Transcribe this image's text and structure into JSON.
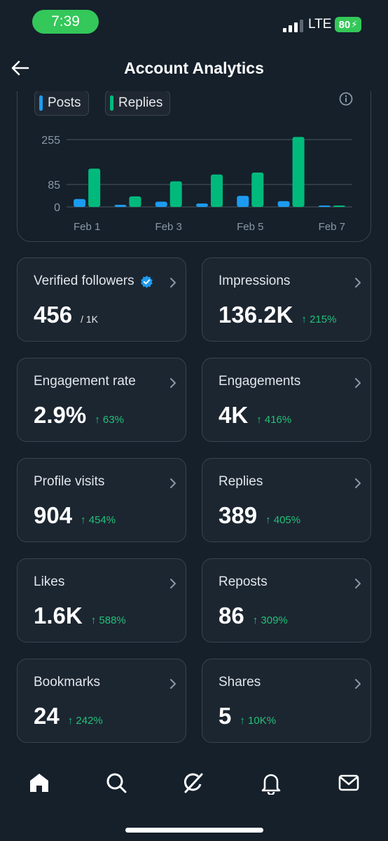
{
  "status_bar": {
    "time": "7:39",
    "network": "LTE",
    "battery": "80"
  },
  "header": {
    "title": "Account Analytics"
  },
  "legend": {
    "posts": "Posts",
    "replies": "Replies"
  },
  "colors": {
    "posts": "#1d9bf0",
    "replies": "#00ba7c",
    "positive": "#23c078"
  },
  "chart_data": {
    "type": "bar",
    "categories": [
      "Feb 1",
      "Feb 2",
      "Feb 3",
      "Feb 4",
      "Feb 5",
      "Feb 6",
      "Feb 7"
    ],
    "x_tick_labels": [
      "Feb 1",
      "Feb 3",
      "Feb 5",
      "Feb 7"
    ],
    "series": [
      {
        "name": "Posts",
        "values": [
          30,
          8,
          20,
          13,
          42,
          22,
          3
        ]
      },
      {
        "name": "Replies",
        "values": [
          145,
          40,
          97,
          123,
          130,
          265,
          4
        ]
      }
    ],
    "y_ticks": [
      0,
      85,
      255
    ],
    "ylim": [
      0,
      270
    ],
    "grid": true
  },
  "stats": [
    {
      "label": "Verified followers",
      "value": "456",
      "sub": "/ 1K",
      "change": "",
      "verified": true
    },
    {
      "label": "Impressions",
      "value": "136.2K",
      "sub": "",
      "change": "↑ 215%"
    },
    {
      "label": "Engagement rate",
      "value": "2.9%",
      "sub": "",
      "change": "↑ 63%"
    },
    {
      "label": "Engagements",
      "value": "4K",
      "sub": "",
      "change": "↑ 416%"
    },
    {
      "label": "Profile visits",
      "value": "904",
      "sub": "",
      "change": "↑ 454%"
    },
    {
      "label": "Replies",
      "value": "389",
      "sub": "",
      "change": "↑ 405%"
    },
    {
      "label": "Likes",
      "value": "1.6K",
      "sub": "",
      "change": "↑ 588%"
    },
    {
      "label": "Reposts",
      "value": "86",
      "sub": "",
      "change": "↑ 309%"
    },
    {
      "label": "Bookmarks",
      "value": "24",
      "sub": "",
      "change": "↑ 242%"
    },
    {
      "label": "Shares",
      "value": "5",
      "sub": "",
      "change": "↑ 10K%"
    }
  ],
  "nav": [
    "home-icon",
    "search-icon",
    "grok-icon",
    "notifications-icon",
    "messages-icon"
  ]
}
